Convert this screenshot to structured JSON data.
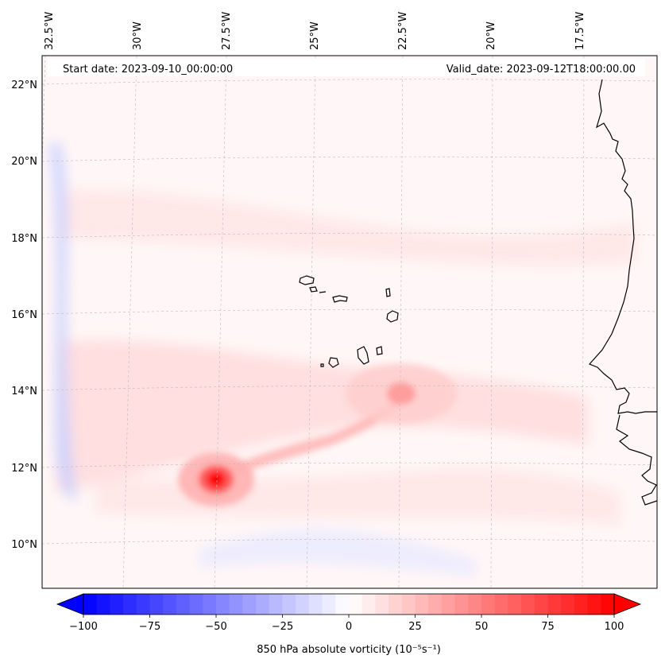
{
  "info": {
    "start_date": "Start date: 2023-09-10_00:00:00",
    "valid_date": "Valid_date: 2023-09-12T18:00:00.00"
  },
  "longitude_labels": [
    "32.5°W",
    "30°W",
    "27.5°W",
    "25°W",
    "22.5°W",
    "20°W",
    "17.5°W"
  ],
  "latitude_labels": [
    "22°N",
    "20°N",
    "18°N",
    "16°N",
    "14°N",
    "12°N",
    "10°N"
  ],
  "colorbar": {
    "label": "850 hPa absolute vorticity (10⁻⁵s⁻¹)",
    "ticks": [
      "−100",
      "−75",
      "−50",
      "−25",
      "0",
      "25",
      "50",
      "75",
      "100"
    ],
    "min": -100,
    "max": 100,
    "levels": 40,
    "colormap": "bwr",
    "extend": "both"
  },
  "features": {
    "max_vortex_value": 100,
    "secondary_vortex_value": 40,
    "coastline_color": "#000000"
  }
}
